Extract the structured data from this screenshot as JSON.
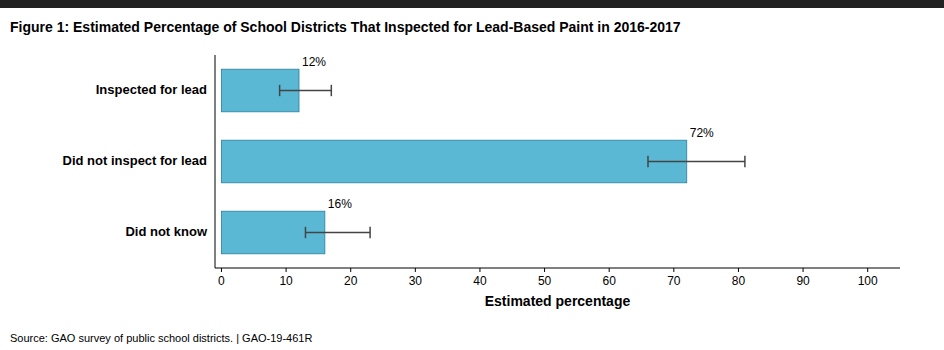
{
  "chart_data": {
    "type": "bar",
    "orientation": "horizontal",
    "title": "Figure 1: Estimated Percentage of School Districts That Inspected for Lead-Based Paint in 2016-2017",
    "categories": [
      "Did not know",
      "Did not inspect for lead",
      "Inspected for lead"
    ],
    "values": [
      16,
      72,
      12
    ],
    "value_labels": [
      "16%",
      "72%",
      "12%"
    ],
    "errors_minus": [
      3,
      6,
      3
    ],
    "errors_plus": [
      7,
      9,
      5
    ],
    "color": "#5BB8D4",
    "xlabel": "Estimated percentage",
    "xlim": [
      -1,
      105
    ],
    "xticks": [
      0,
      10,
      20,
      30,
      40,
      50,
      60,
      70,
      80,
      90,
      100
    ],
    "grid": false,
    "data_labels": true,
    "source": "Source: GAO survey of public school districts.  |  GAO-19-461R"
  }
}
